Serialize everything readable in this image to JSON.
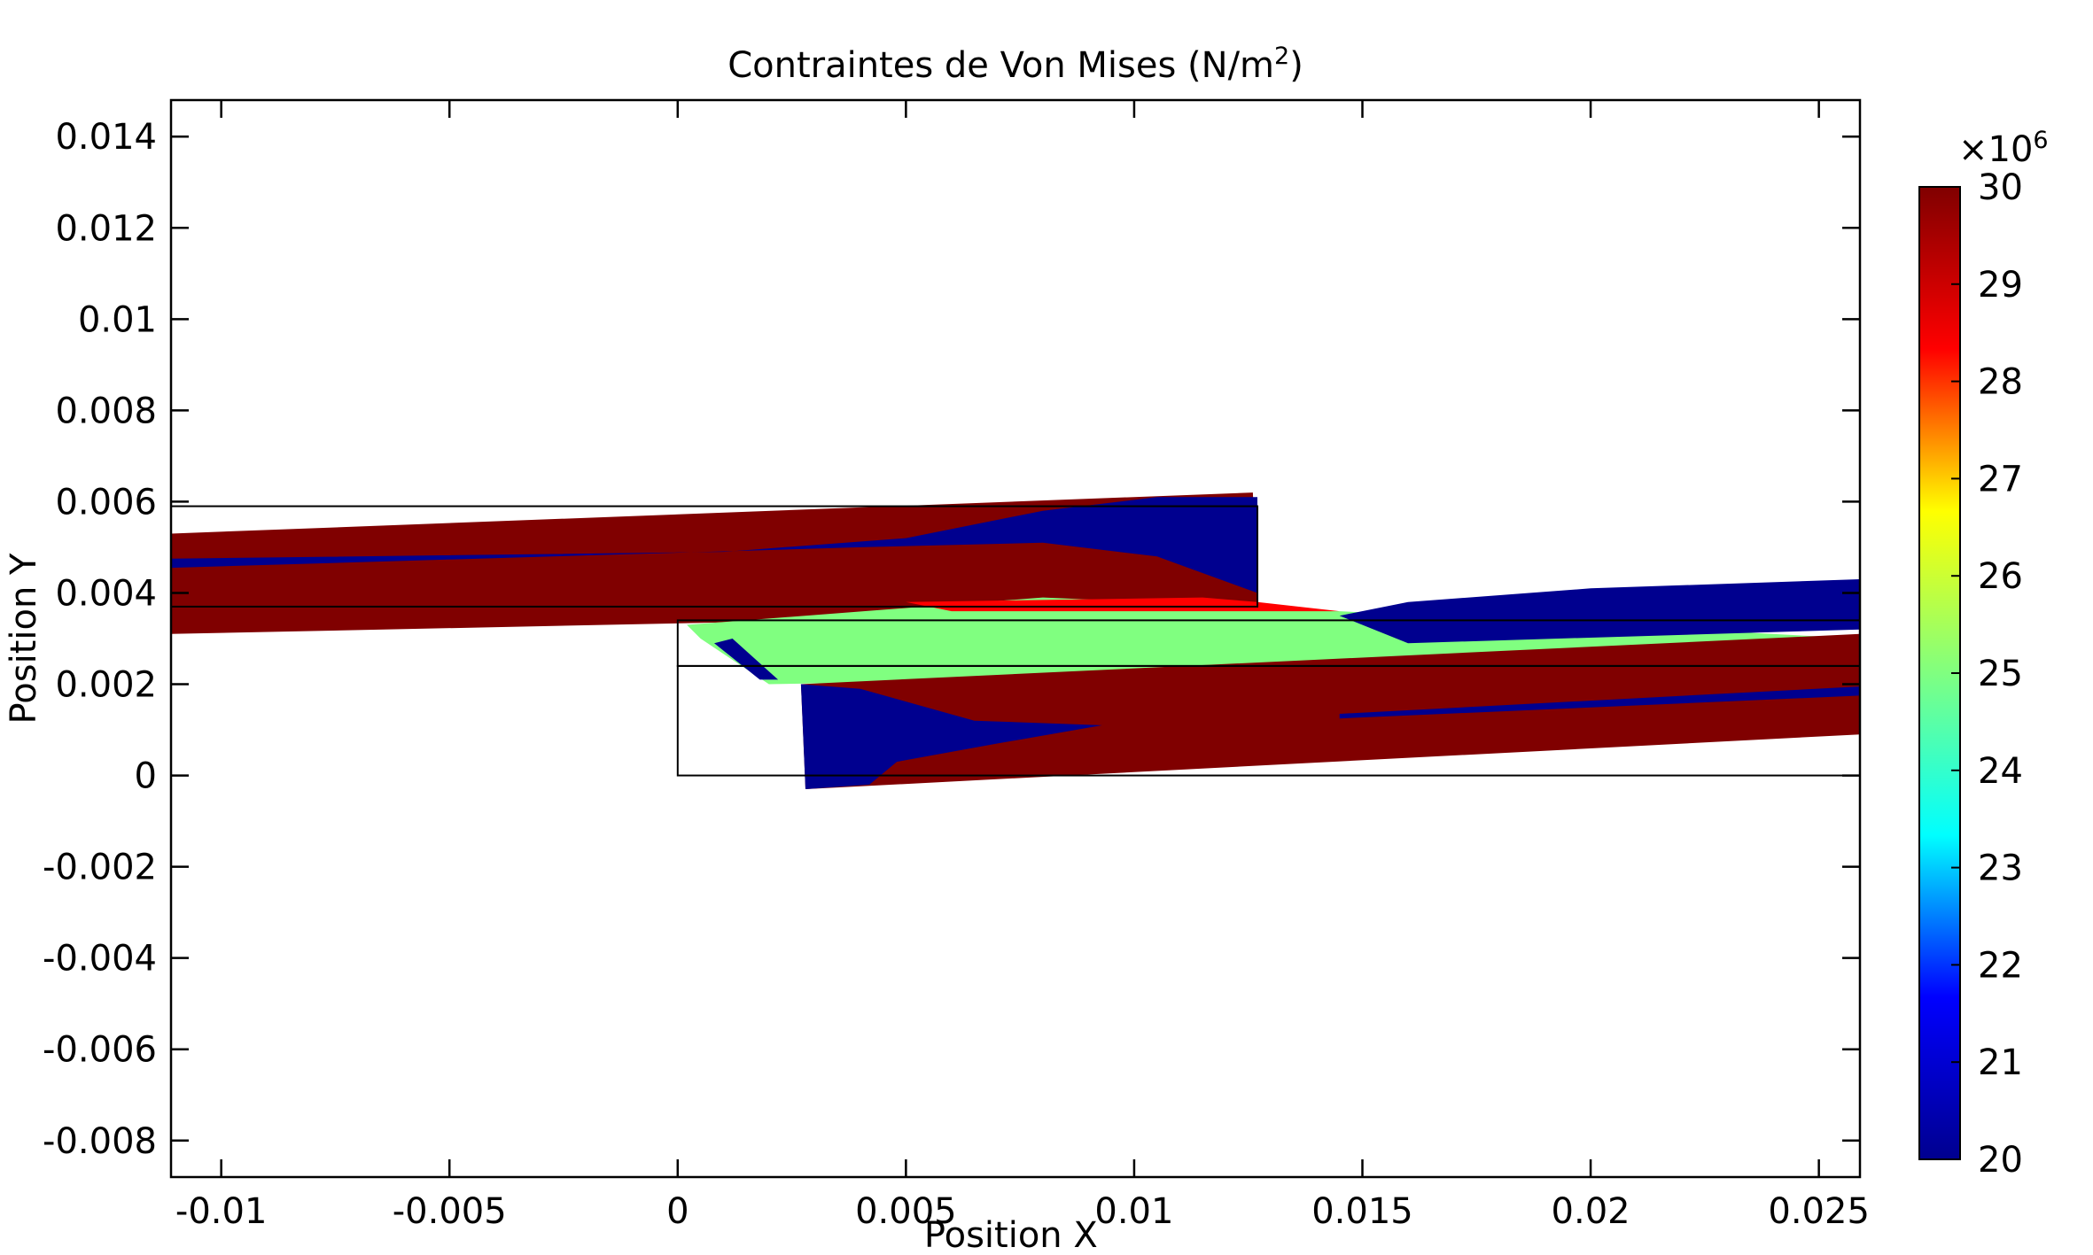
{
  "chart_data": {
    "type": "heatmap",
    "title": "Contraintes de Von Mises (N/m",
    "title_superscript": "2",
    "title_suffix": ")",
    "xlabel": "Position X",
    "ylabel": "Position Y",
    "xlim": [
      -0.0111,
      0.0259
    ],
    "ylim": [
      -0.0088,
      0.0148
    ],
    "x_ticks": [
      {
        "value": -0.01,
        "label": "-0.01"
      },
      {
        "value": -0.005,
        "label": "-0.005"
      },
      {
        "value": 0,
        "label": "0"
      },
      {
        "value": 0.005,
        "label": "0.005"
      },
      {
        "value": 0.01,
        "label": "0.01"
      },
      {
        "value": 0.015,
        "label": "0.015"
      },
      {
        "value": 0.02,
        "label": "0.02"
      },
      {
        "value": 0.025,
        "label": "0.025"
      }
    ],
    "y_ticks": [
      {
        "value": 0.014,
        "label": "0.014"
      },
      {
        "value": 0.012,
        "label": "0.012"
      },
      {
        "value": 0.01,
        "label": "0.01"
      },
      {
        "value": 0.008,
        "label": "0.008"
      },
      {
        "value": 0.006,
        "label": "0.006"
      },
      {
        "value": 0.004,
        "label": "0.004"
      },
      {
        "value": 0.002,
        "label": "0.002"
      },
      {
        "value": 0,
        "label": "0"
      },
      {
        "value": -0.002,
        "label": "-0.002"
      },
      {
        "value": -0.004,
        "label": "-0.004"
      },
      {
        "value": -0.006,
        "label": "-0.006"
      },
      {
        "value": -0.008,
        "label": "-0.008"
      }
    ],
    "colorbar": {
      "min": 20,
      "max": 30,
      "exponent_prefix": "×10",
      "exponent": "6",
      "ticks": [
        {
          "value": 30,
          "label": "30"
        },
        {
          "value": 29,
          "label": "29"
        },
        {
          "value": 28,
          "label": "28"
        },
        {
          "value": 27,
          "label": "27"
        },
        {
          "value": 26,
          "label": "26"
        },
        {
          "value": 25,
          "label": "25"
        },
        {
          "value": 24,
          "label": "24"
        },
        {
          "value": 23,
          "label": "23"
        },
        {
          "value": 22,
          "label": "22"
        },
        {
          "value": 21,
          "label": "21"
        },
        {
          "value": 20,
          "label": "20"
        }
      ],
      "colormap": [
        "#00008f",
        "#0000ff",
        "#00ffff",
        "#80ff80",
        "#ffff00",
        "#ff0000",
        "#800000"
      ]
    },
    "grid": false,
    "reference_rectangles": [
      {
        "x0": -0.0111,
        "y0": 0.0037,
        "x1": 0.0127,
        "y1": 0.0059
      },
      {
        "x0": 0,
        "y0": 0.0034,
        "x1": 0.0259,
        "y1": 0.0024
      },
      {
        "x0": 0,
        "y0": 0,
        "x1": 0.0259,
        "y1": 0.0024
      }
    ],
    "regions": [
      {
        "name": "upper-plate",
        "stress": 30,
        "polygon": [
          [
            -0.0111,
            0.0031
          ],
          [
            0.0127,
            0.0036
          ],
          [
            0.0126,
            0.0062
          ],
          [
            -0.0111,
            0.0053
          ]
        ]
      },
      {
        "name": "upper-plate-low-stress-band",
        "stress": 20,
        "polygon": [
          [
            -0.0111,
            0.00455
          ],
          [
            0.004,
            0.005
          ],
          [
            0.008,
            0.0051
          ],
          [
            0.0105,
            0.0048
          ],
          [
            0.0127,
            0.004
          ],
          [
            0.0127,
            0.0061
          ],
          [
            0.0105,
            0.0061
          ],
          [
            0.008,
            0.0058
          ],
          [
            0.005,
            0.0052
          ],
          [
            0.001,
            0.0049
          ],
          [
            -0.0111,
            0.00475
          ]
        ]
      },
      {
        "name": "overlap-zone",
        "stress": 25,
        "polygon": [
          [
            0.0002,
            0.0033
          ],
          [
            0.008,
            0.0039
          ],
          [
            0.0127,
            0.0037
          ],
          [
            0.0145,
            0.0036
          ],
          [
            0.0259,
            0.003
          ],
          [
            0.0259,
            0.0024
          ],
          [
            0.002,
            0.002
          ],
          [
            0.0005,
            0.003
          ]
        ]
      },
      {
        "name": "overlap-high-stress-edge",
        "stress": 29,
        "polygon": [
          [
            0.005,
            0.0038
          ],
          [
            0.0115,
            0.0039
          ],
          [
            0.0127,
            0.0038
          ],
          [
            0.0145,
            0.0036
          ],
          [
            0.011,
            0.0036
          ],
          [
            0.006,
            0.0036
          ]
        ]
      },
      {
        "name": "right-upper-plate",
        "stress": 20,
        "polygon": [
          [
            0.0145,
            0.0035
          ],
          [
            0.016,
            0.0038
          ],
          [
            0.02,
            0.0041
          ],
          [
            0.0259,
            0.0043
          ],
          [
            0.0259,
            0.0032
          ],
          [
            0.016,
            0.0029
          ]
        ]
      },
      {
        "name": "lower-plate",
        "stress": 30,
        "polygon": [
          [
            0.0027,
            0.002
          ],
          [
            0.0259,
            0.0031
          ],
          [
            0.0259,
            0.0009
          ],
          [
            0.0028,
            -0.0003
          ]
        ]
      },
      {
        "name": "lower-plate-low-stress-wedge",
        "stress": 20,
        "polygon": [
          [
            0.0027,
            0.002
          ],
          [
            0.004,
            0.0019
          ],
          [
            0.0065,
            0.0012
          ],
          [
            0.0093,
            0.0011
          ],
          [
            0.007,
            0.0007
          ],
          [
            0.0048,
            0.0003
          ],
          [
            0.0042,
            -0.0002
          ],
          [
            0.0028,
            -0.0003
          ]
        ]
      },
      {
        "name": "lower-plate-low-stress-band",
        "stress": 20,
        "polygon": [
          [
            0.0145,
            0.00135
          ],
          [
            0.0259,
            0.00195
          ],
          [
            0.0259,
            0.00175
          ],
          [
            0.0145,
            0.00125
          ]
        ]
      },
      {
        "name": "corner-low-stress",
        "stress": 20,
        "polygon": [
          [
            0.0008,
            0.0029
          ],
          [
            0.0018,
            0.0021
          ],
          [
            0.0022,
            0.0021
          ],
          [
            0.0012,
            0.003
          ]
        ]
      }
    ]
  }
}
